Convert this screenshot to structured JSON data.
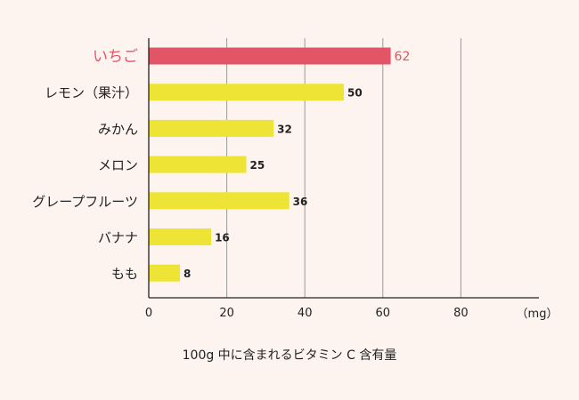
{
  "chart_data": {
    "type": "bar",
    "orientation": "horizontal",
    "categories": [
      "いちご",
      "レモン（果汁）",
      "みかん",
      "メロン",
      "グレープフルーツ",
      "バナナ",
      "もも"
    ],
    "values": [
      62,
      50,
      32,
      25,
      36,
      16,
      8
    ],
    "highlight_index": 0,
    "xlim": [
      0,
      100
    ],
    "xticks": [
      0,
      20,
      40,
      60,
      80
    ],
    "unit_label": "（mg）",
    "caption": "100g 中に含まれるビタミン C 含有量",
    "grid": true
  },
  "colors": {
    "background": "#fdf3ef",
    "bar": "#ede435",
    "highlight_bar": "#e25566",
    "highlight_text": "#e25566",
    "text": "#222222",
    "axis": "#222222",
    "grid": "#9a9a9a"
  }
}
